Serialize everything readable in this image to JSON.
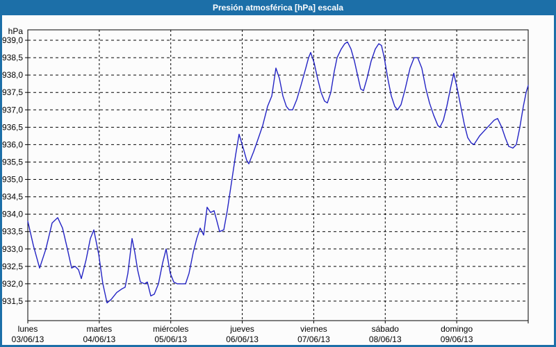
{
  "window": {
    "title": "Presión atmosférica [hPa] escala"
  },
  "colors": {
    "frame": "#1c6fa8",
    "titlebar": "#1c6fa8",
    "title_text": "#ffffff",
    "plot_bg": "#fcfcfc",
    "grid": "#000000",
    "line": "#2323c4"
  },
  "chart_data": {
    "type": "line",
    "title": "Presión atmosférica [hPa] escala",
    "unit": "hPa",
    "xlabel": "",
    "ylabel": "hPa",
    "grid": true,
    "legend": "none",
    "ylim": [
      930.94,
      939.3
    ],
    "xlim_days": [
      0,
      7
    ],
    "y_ticks": [
      {
        "value": 939.0,
        "label": "939,0"
      },
      {
        "value": 938.5,
        "label": "938,5"
      },
      {
        "value": 938.0,
        "label": "938,0"
      },
      {
        "value": 937.5,
        "label": "937,5"
      },
      {
        "value": 937.0,
        "label": "937,0"
      },
      {
        "value": 936.5,
        "label": "936,5"
      },
      {
        "value": 936.0,
        "label": "936,0"
      },
      {
        "value": 935.5,
        "label": "935,5"
      },
      {
        "value": 935.0,
        "label": "935,0"
      },
      {
        "value": 934.5,
        "label": "934,5"
      },
      {
        "value": 934.0,
        "label": "934,0"
      },
      {
        "value": 933.5,
        "label": "933,5"
      },
      {
        "value": 933.0,
        "label": "933,0"
      },
      {
        "value": 932.5,
        "label": "932,5"
      },
      {
        "value": 932.0,
        "label": "932,0"
      },
      {
        "value": 931.5,
        "label": "931,5"
      }
    ],
    "x_ticks": [
      {
        "t": 0,
        "day": "lunes",
        "date": "03/06/13"
      },
      {
        "t": 1,
        "day": "martes",
        "date": "04/06/13"
      },
      {
        "t": 2,
        "day": "miércoles",
        "date": "05/06/13"
      },
      {
        "t": 3,
        "day": "jueves",
        "date": "06/06/13"
      },
      {
        "t": 4,
        "day": "viernes",
        "date": "07/06/13"
      },
      {
        "t": 5,
        "day": "sábado",
        "date": "08/06/13"
      },
      {
        "t": 6,
        "day": "domingo",
        "date": "09/06/13"
      }
    ],
    "series": [
      {
        "name": "Presión atmosférica [hPa]",
        "color": "#2323c4",
        "points": [
          [
            0.0,
            933.8
          ],
          [
            0.078,
            933.1
          ],
          [
            0.165,
            932.45
          ],
          [
            0.253,
            933.0
          ],
          [
            0.34,
            933.75
          ],
          [
            0.418,
            933.9
          ],
          [
            0.486,
            933.6
          ],
          [
            0.554,
            933.0
          ],
          [
            0.613,
            932.45
          ],
          [
            0.661,
            932.5
          ],
          [
            0.71,
            932.4
          ],
          [
            0.749,
            932.15
          ],
          [
            0.817,
            932.7
          ],
          [
            0.875,
            933.3
          ],
          [
            0.924,
            933.55
          ],
          [
            0.992,
            932.85
          ],
          [
            1.05,
            932.0
          ],
          [
            1.108,
            931.45
          ],
          [
            1.167,
            931.55
          ],
          [
            1.244,
            931.75
          ],
          [
            1.313,
            931.85
          ],
          [
            1.361,
            931.9
          ],
          [
            1.4,
            932.3
          ],
          [
            1.429,
            932.8
          ],
          [
            1.458,
            933.3
          ],
          [
            1.497,
            932.9
          ],
          [
            1.536,
            932.4
          ],
          [
            1.575,
            932.05
          ],
          [
            1.633,
            932.0
          ],
          [
            1.672,
            932.05
          ],
          [
            1.721,
            931.65
          ],
          [
            1.769,
            931.7
          ],
          [
            1.828,
            932.0
          ],
          [
            1.886,
            932.6
          ],
          [
            1.935,
            933.0
          ],
          [
            1.993,
            932.3
          ],
          [
            2.042,
            932.05
          ],
          [
            2.09,
            932.0
          ],
          [
            2.158,
            932.0
          ],
          [
            2.207,
            932.0
          ],
          [
            2.256,
            932.3
          ],
          [
            2.314,
            932.9
          ],
          [
            2.363,
            933.3
          ],
          [
            2.411,
            933.6
          ],
          [
            2.46,
            933.4
          ],
          [
            2.508,
            934.2
          ],
          [
            2.557,
            934.05
          ],
          [
            2.606,
            934.1
          ],
          [
            2.645,
            933.8
          ],
          [
            2.683,
            933.5
          ],
          [
            2.742,
            933.55
          ],
          [
            2.79,
            934.1
          ],
          [
            2.849,
            934.9
          ],
          [
            2.907,
            935.7
          ],
          [
            2.956,
            936.3
          ],
          [
            3.014,
            935.9
          ],
          [
            3.062,
            935.55
          ],
          [
            3.092,
            935.45
          ],
          [
            3.16,
            935.8
          ],
          [
            3.228,
            936.2
          ],
          [
            3.286,
            936.55
          ],
          [
            3.354,
            937.1
          ],
          [
            3.413,
            937.4
          ],
          [
            3.471,
            938.2
          ],
          [
            3.52,
            937.9
          ],
          [
            3.568,
            937.4
          ],
          [
            3.617,
            937.1
          ],
          [
            3.656,
            937.0
          ],
          [
            3.704,
            937.0
          ],
          [
            3.763,
            937.3
          ],
          [
            3.821,
            937.7
          ],
          [
            3.889,
            938.2
          ],
          [
            3.928,
            938.5
          ],
          [
            3.957,
            938.65
          ],
          [
            4.006,
            938.35
          ],
          [
            4.054,
            937.9
          ],
          [
            4.103,
            937.5
          ],
          [
            4.151,
            937.25
          ],
          [
            4.19,
            937.2
          ],
          [
            4.239,
            937.5
          ],
          [
            4.287,
            938.1
          ],
          [
            4.326,
            938.5
          ],
          [
            4.385,
            938.75
          ],
          [
            4.433,
            938.9
          ],
          [
            4.472,
            938.95
          ],
          [
            4.521,
            938.75
          ],
          [
            4.569,
            938.4
          ],
          [
            4.618,
            937.95
          ],
          [
            4.657,
            937.6
          ],
          [
            4.696,
            937.55
          ],
          [
            4.744,
            937.9
          ],
          [
            4.803,
            938.4
          ],
          [
            4.861,
            938.75
          ],
          [
            4.91,
            938.9
          ],
          [
            4.948,
            938.85
          ],
          [
            4.987,
            938.5
          ],
          [
            5.036,
            937.9
          ],
          [
            5.085,
            937.4
          ],
          [
            5.133,
            937.1
          ],
          [
            5.172,
            937.0
          ],
          [
            5.221,
            937.15
          ],
          [
            5.279,
            937.6
          ],
          [
            5.347,
            938.2
          ],
          [
            5.405,
            938.5
          ],
          [
            5.454,
            938.5
          ],
          [
            5.512,
            938.2
          ],
          [
            5.57,
            937.6
          ],
          [
            5.619,
            937.2
          ],
          [
            5.677,
            936.85
          ],
          [
            5.736,
            936.55
          ],
          [
            5.765,
            936.5
          ],
          [
            5.813,
            936.7
          ],
          [
            5.862,
            937.1
          ],
          [
            5.911,
            937.6
          ],
          [
            5.959,
            938.05
          ],
          [
            6.008,
            937.6
          ],
          [
            6.057,
            937.1
          ],
          [
            6.105,
            936.6
          ],
          [
            6.154,
            936.2
          ],
          [
            6.202,
            936.05
          ],
          [
            6.241,
            936.0
          ],
          [
            6.319,
            936.25
          ],
          [
            6.387,
            936.4
          ],
          [
            6.455,
            936.55
          ],
          [
            6.523,
            936.7
          ],
          [
            6.572,
            936.75
          ],
          [
            6.63,
            936.5
          ],
          [
            6.679,
            936.2
          ],
          [
            6.727,
            935.95
          ],
          [
            6.786,
            935.9
          ],
          [
            6.834,
            936.0
          ],
          [
            6.883,
            936.5
          ],
          [
            6.932,
            937.1
          ],
          [
            6.971,
            937.5
          ],
          [
            7.0,
            937.7
          ]
        ]
      }
    ]
  }
}
